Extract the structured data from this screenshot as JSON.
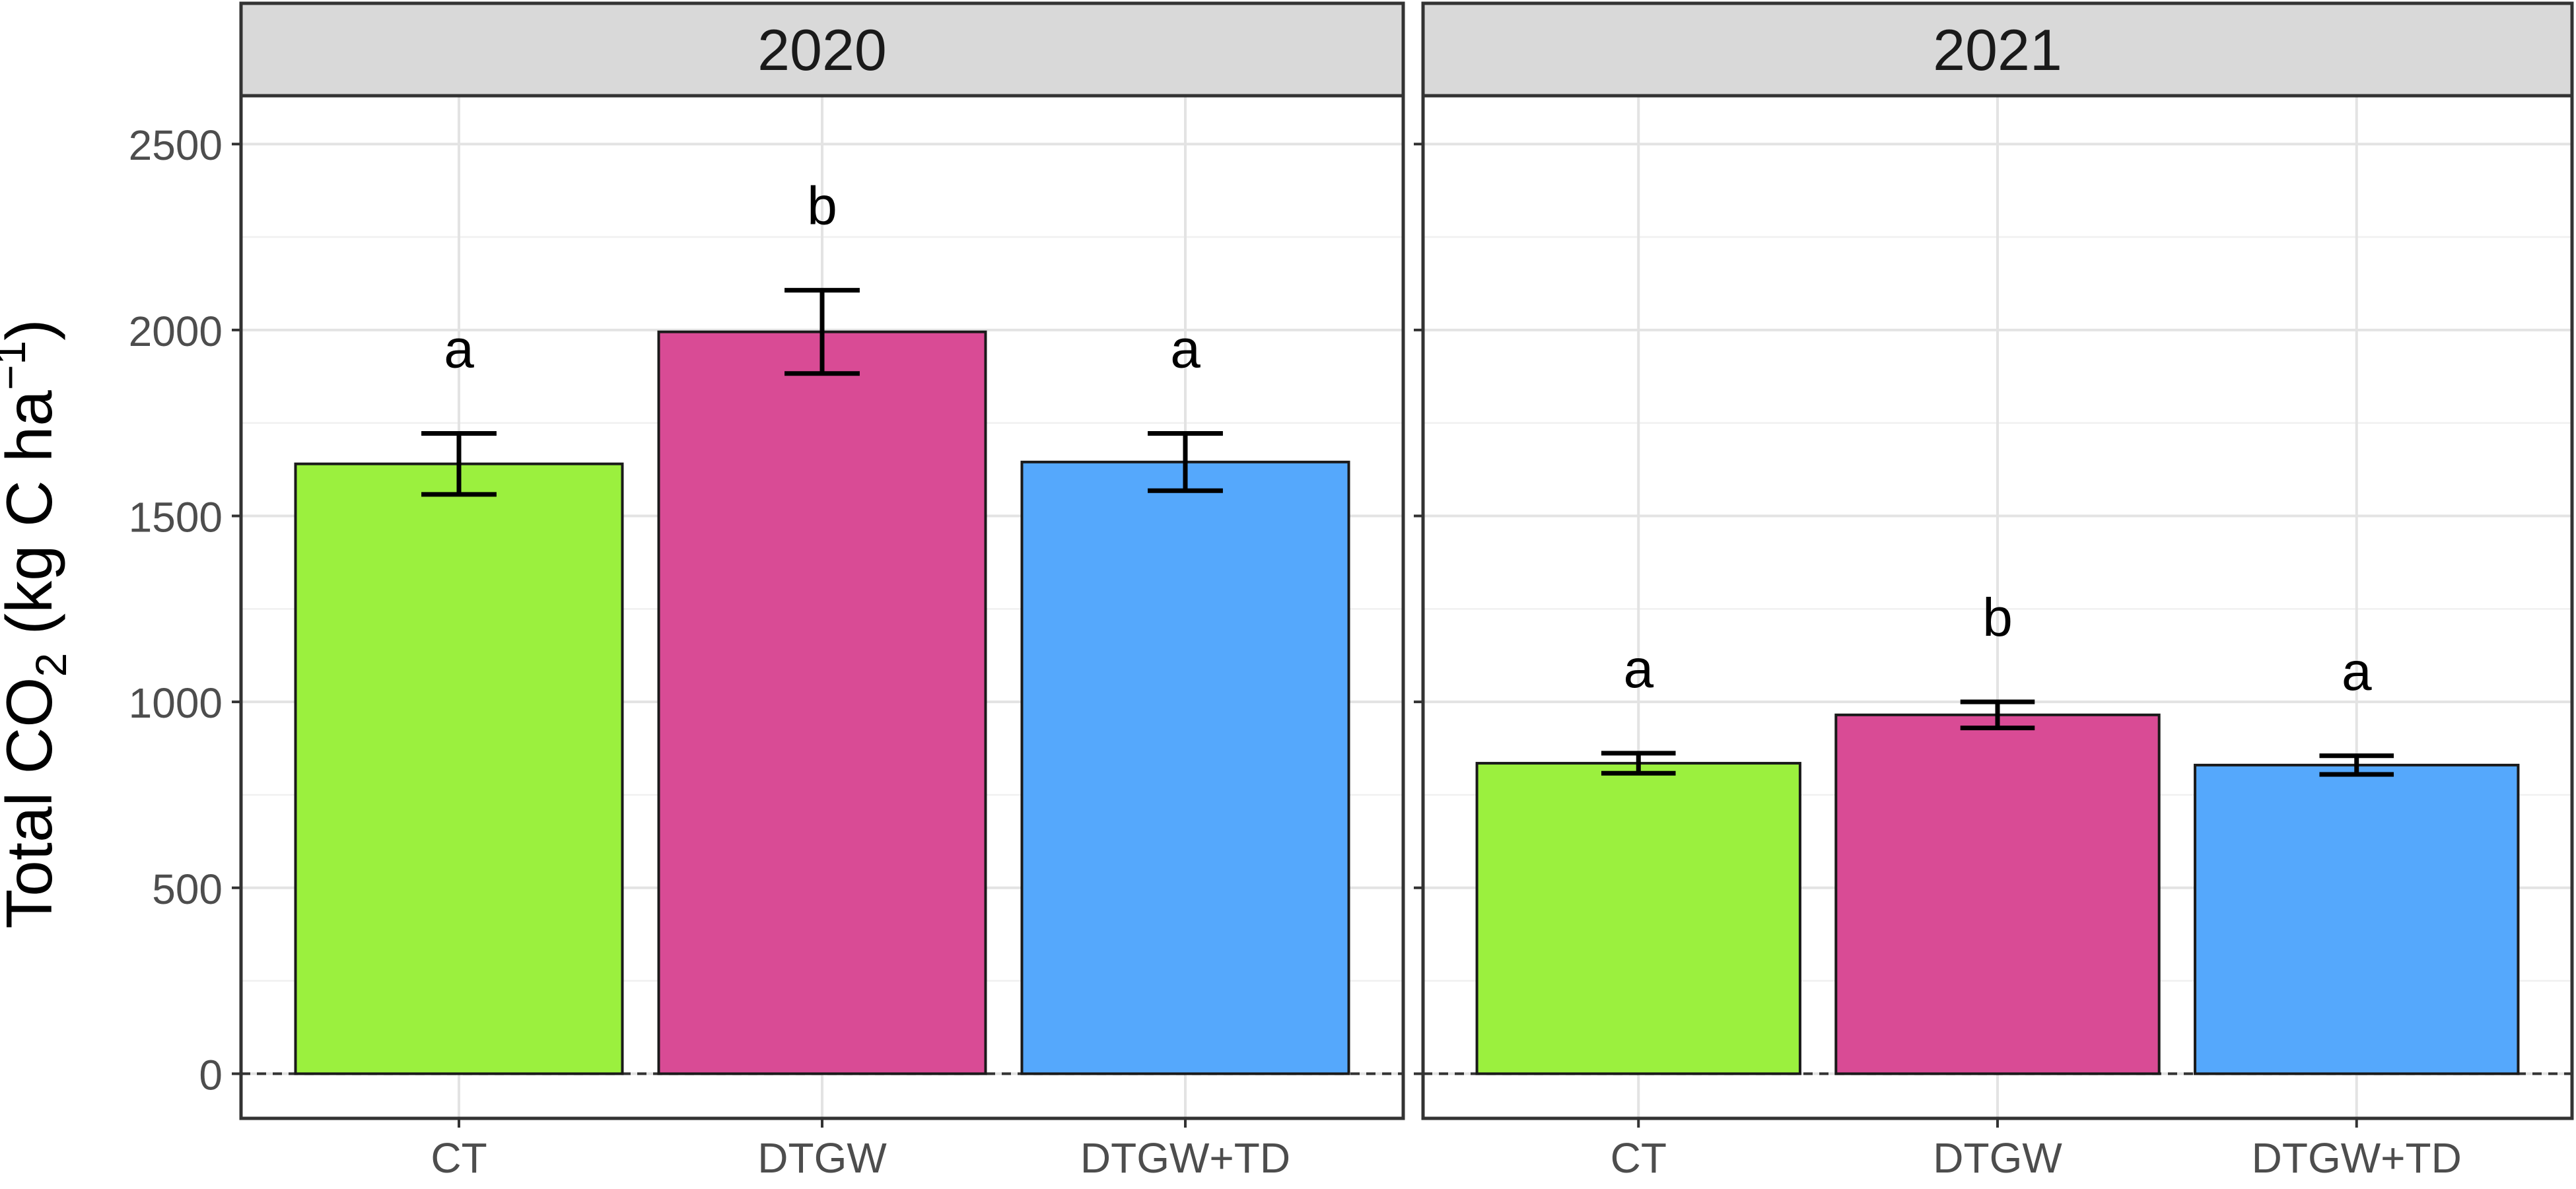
{
  "chart_data": {
    "type": "bar",
    "ylabel": {
      "prefix": "Total CO",
      "subscript": "2",
      "mid": " (kg C ha",
      "superscript": "−1",
      "suffix": ")"
    },
    "ylim": [
      -120,
      2630
    ],
    "yticks": [
      0,
      500,
      1000,
      1500,
      2000,
      2500
    ],
    "categories": [
      "CT",
      "DTGW",
      "DTGW+TD"
    ],
    "colors": {
      "CT": "#9BF03E",
      "DTGW": "#D94B95",
      "DTGW+TD": "#55A8FC"
    },
    "grid": true,
    "reference_line": 0,
    "panels": [
      {
        "label": "2020",
        "values": [
          1640,
          1995,
          1645
        ],
        "errors": [
          82,
          112,
          77
        ],
        "letters": [
          "a",
          "b",
          "a"
        ]
      },
      {
        "label": "2021",
        "values": [
          835,
          965,
          830
        ],
        "errors": [
          27,
          35,
          25
        ],
        "letters": [
          "a",
          "b",
          "a"
        ]
      }
    ]
  }
}
